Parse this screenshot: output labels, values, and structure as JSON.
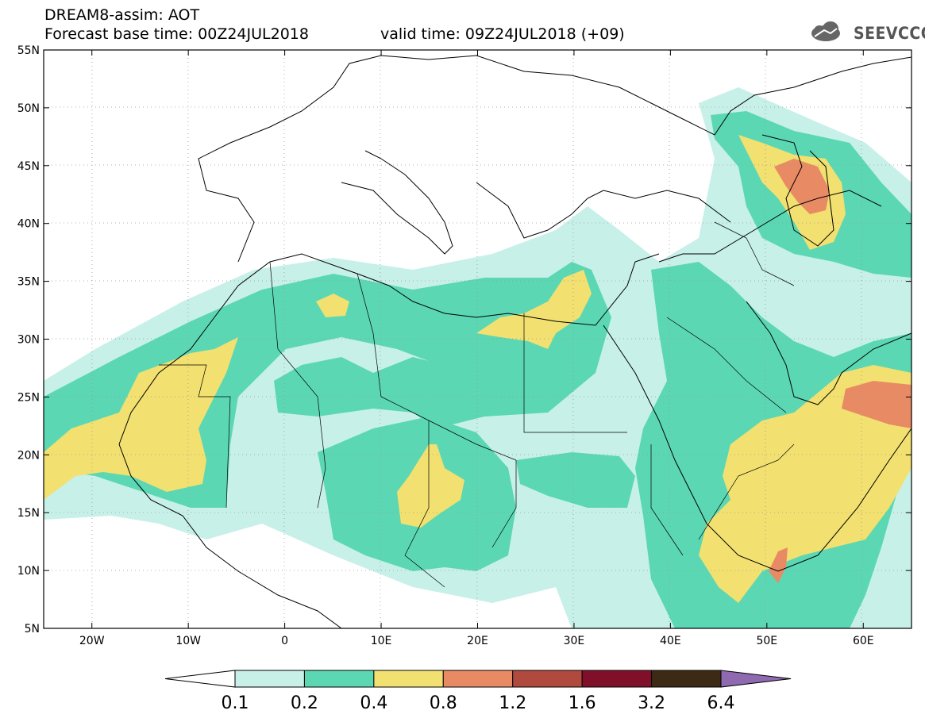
{
  "header": {
    "model_line": "DREAM8-assim: AOT",
    "base_time": "Forecast base time: 00Z24JUL2018",
    "valid_time": "valid time: 09Z24JUL2018 (+09)"
  },
  "logo": {
    "text": "SEEVCCC",
    "icon": "cloud-icon"
  },
  "map": {
    "lon_range": [
      -25,
      65
    ],
    "lat_range": [
      5,
      55
    ],
    "lat_labels": [
      "55N",
      "50N",
      "45N",
      "40N",
      "35N",
      "30N",
      "25N",
      "20N",
      "15N",
      "10N",
      "5N"
    ],
    "lon_labels": [
      "20W",
      "10W",
      "0",
      "10E",
      "20E",
      "30E",
      "40E",
      "50E",
      "60E"
    ],
    "grid": "dotted"
  },
  "colorbar": {
    "labels": [
      "0.1",
      "0.2",
      "0.4",
      "0.8",
      "1.2",
      "1.6",
      "3.2",
      "6.4"
    ],
    "colors": [
      "#ffffff",
      "#c7f0e8",
      "#5bd8b3",
      "#f2e070",
      "#e88b64",
      "#b04a3e",
      "#80102a",
      "#3d2a14",
      "#8f6ab0"
    ]
  }
}
